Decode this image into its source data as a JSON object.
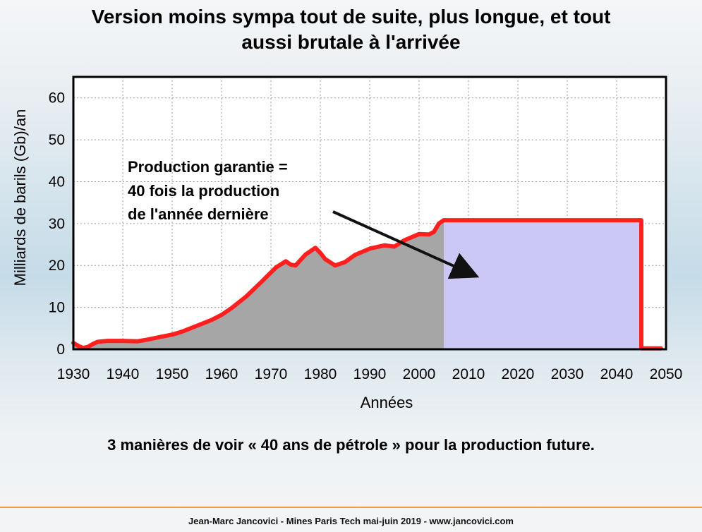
{
  "title_lines": [
    "Version moins sympa tout de suite, plus longue, et tout",
    "aussi brutale à l'arrivée"
  ],
  "subtitle": "3 manières de voir « 40 ans de pétrole » pour la production future.",
  "footer": "Jean-Marc Jancovici - Mines Paris Tech mai-juin 2019 - www.jancovici.com",
  "annotation_lines": [
    "Production garantie =",
    "40 fois la production",
    "de l'année dernière"
  ],
  "colors": {
    "line": "#ff1f1f",
    "historical_fill": "#a6a6a6",
    "future_fill": "#cbc8f5",
    "frame": "#000000",
    "grid": "#9a9a9a"
  },
  "chart_data": {
    "type": "line",
    "xlabel": "Années",
    "ylabel": "Milliards de barils (Gb)/an",
    "xlim": [
      1930,
      2050
    ],
    "ylim": [
      0,
      65
    ],
    "x_ticks": [
      "1930",
      "1940",
      "1950",
      "1960",
      "1970",
      "1980",
      "1990",
      "2000",
      "2010",
      "2020",
      "2030",
      "2040",
      "2050"
    ],
    "y_ticks": [
      "0",
      "10",
      "20",
      "30",
      "40",
      "50",
      "60"
    ],
    "grid": true,
    "historical_shaded_until": 2005,
    "future_shaded_range": [
      2005,
      2045
    ],
    "series": [
      {
        "points": [
          [
            1930,
            1.5
          ],
          [
            1931,
            0.8
          ],
          [
            1932,
            0.3
          ],
          [
            1933,
            0.6
          ],
          [
            1934,
            1.3
          ],
          [
            1935,
            1.8
          ],
          [
            1937,
            2.0
          ],
          [
            1940,
            2.0
          ],
          [
            1943,
            1.9
          ],
          [
            1945,
            2.3
          ],
          [
            1947,
            2.8
          ],
          [
            1950,
            3.5
          ],
          [
            1952,
            4.2
          ],
          [
            1955,
            5.6
          ],
          [
            1958,
            7.0
          ],
          [
            1960,
            8.2
          ],
          [
            1962,
            9.8
          ],
          [
            1965,
            12.6
          ],
          [
            1968,
            16.0
          ],
          [
            1971,
            19.5
          ],
          [
            1973,
            21.0
          ],
          [
            1974,
            20.2
          ],
          [
            1975,
            20.0
          ],
          [
            1977,
            22.6
          ],
          [
            1979,
            24.2
          ],
          [
            1980,
            23.0
          ],
          [
            1981,
            21.5
          ],
          [
            1983,
            20.0
          ],
          [
            1985,
            20.8
          ],
          [
            1987,
            22.5
          ],
          [
            1990,
            24.0
          ],
          [
            1993,
            24.8
          ],
          [
            1995,
            24.5
          ],
          [
            1997,
            26.0
          ],
          [
            2000,
            27.5
          ],
          [
            2002,
            27.4
          ],
          [
            2003,
            28.0
          ],
          [
            2004,
            30.0
          ],
          [
            2005,
            30.8
          ],
          [
            2045,
            30.8
          ],
          [
            2045,
            0.2
          ],
          [
            2049,
            0.2
          ]
        ]
      }
    ]
  }
}
